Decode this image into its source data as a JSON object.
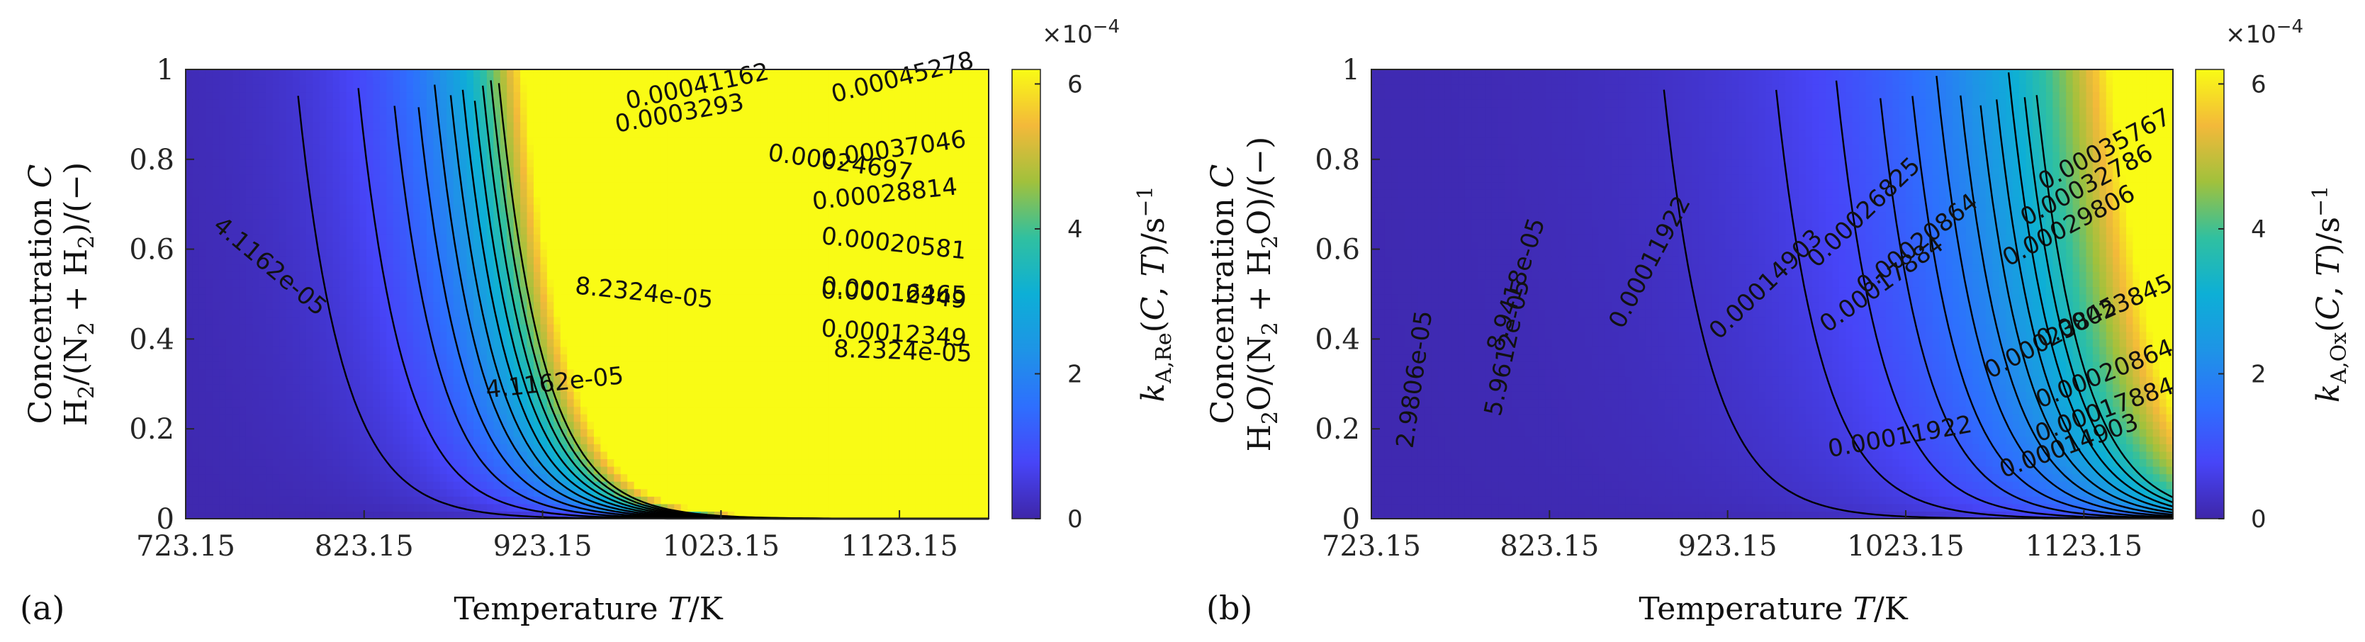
{
  "chart_data": [
    {
      "type": "heatmap",
      "panel_label": "(a)",
      "xlabel": "Temperature T/K",
      "ylabel_line1": "Concentration C",
      "ylabel_line2": "H2/(N2 + H2)/(−)",
      "xlim": [
        723.15,
        1173.15
      ],
      "ylim": [
        0,
        1
      ],
      "xticks": [
        "723.15",
        "823.15",
        "923.15",
        "1023.15",
        "1123.15"
      ],
      "yticks": [
        "0",
        "0.2",
        "0.4",
        "0.6",
        "0.8",
        "1"
      ],
      "colorbar": {
        "label": "k_A,Re(C,T)/s^-1",
        "ticks": [
          "0",
          "2",
          "4",
          "6"
        ],
        "exponent": "×10^-4",
        "range": [
          0,
          0.00062
        ]
      },
      "contour_levels": [
        4.1162e-05,
        8.2324e-05,
        0.00012349,
        0.00016465,
        0.00020581,
        0.00024697,
        0.00028814,
        0.0003293,
        0.00037046,
        0.00041162,
        0.00045278
      ],
      "contour_labels": [
        "4.1162e-05",
        "8.2324e-05",
        "0.00012349",
        "0.00016465",
        "0.00020581",
        "0.00024697",
        "0.00028814",
        "0.0003293",
        "0.00037046",
        "0.00041162",
        "0.00045278"
      ]
    },
    {
      "type": "heatmap",
      "panel_label": "(b)",
      "xlabel": "Temperature T/K",
      "ylabel_line1": "Concentration C",
      "ylabel_line2": "H2O/(N2 + H2O)/(−)",
      "xlim": [
        723.15,
        1173.15
      ],
      "ylim": [
        0,
        1
      ],
      "xticks": [
        "723.15",
        "823.15",
        "923.15",
        "1023.15",
        "1123.15"
      ],
      "yticks": [
        "0",
        "0.2",
        "0.4",
        "0.6",
        "0.8",
        "1"
      ],
      "colorbar": {
        "label": "k_A,Ox(C,T)/s^-1",
        "ticks": [
          "0",
          "2",
          "4",
          "6"
        ],
        "exponent": "×10^-4",
        "range": [
          0,
          0.00062
        ]
      },
      "contour_levels": [
        2.9806e-05,
        5.9612e-05,
        8.9418e-05,
        0.00011922,
        0.00014903,
        0.00017884,
        0.00020864,
        0.00023845,
        0.00026825,
        0.00029806,
        0.00032786,
        0.00035767
      ],
      "contour_labels": [
        "2.9806e-05",
        "5.9612e-05",
        "8.9418e-05",
        "0.00011922",
        "0.00014903",
        "0.00017884",
        "0.00020864",
        "0.00023845",
        "0.00026825",
        "0.00029806",
        "0.00032786",
        "0.00035767"
      ]
    }
  ]
}
